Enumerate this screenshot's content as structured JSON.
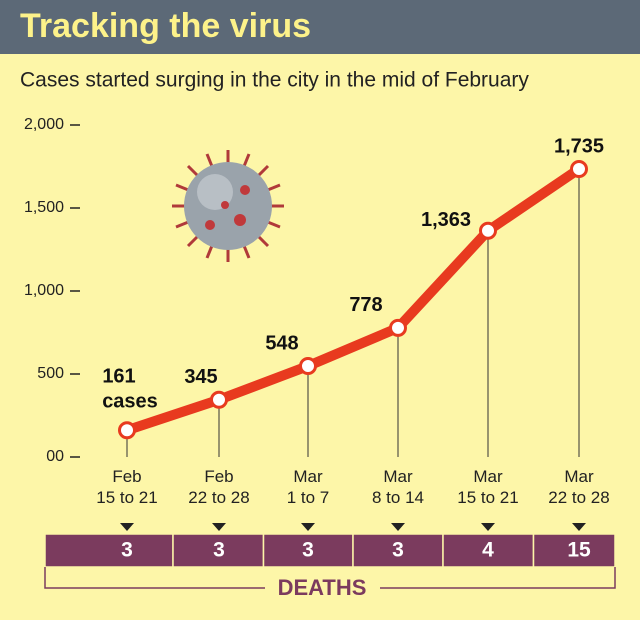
{
  "header": {
    "title": "Tracking the virus"
  },
  "chart_data": {
    "type": "line",
    "subtitle": "Cases started surging in the city in the mid of February",
    "categories": [
      "Feb\n15 to 21",
      "Feb\n22 to 28",
      "Mar\n1 to 7",
      "Mar\n8 to 14",
      "Mar\n15 to 21",
      "Mar\n22 to 28"
    ],
    "series": [
      {
        "name": "cases",
        "color": "#e83a1f",
        "values": [
          161,
          345,
          548,
          778,
          1363,
          1735
        ],
        "value_labels": [
          "161",
          "345",
          "548",
          "778",
          "1,363",
          "1,735"
        ]
      }
    ],
    "ylim": [
      0,
      2000
    ],
    "yticks": [
      {
        "value": 0,
        "label": "00"
      },
      500,
      {
        "value": 1000,
        "label": "1,000"
      },
      {
        "value": 1500,
        "label": "1,500"
      },
      {
        "value": 2000,
        "label": "2,000"
      }
    ],
    "deaths_label": "DEATHS",
    "deaths": [
      3,
      3,
      3,
      3,
      4,
      15
    ]
  }
}
